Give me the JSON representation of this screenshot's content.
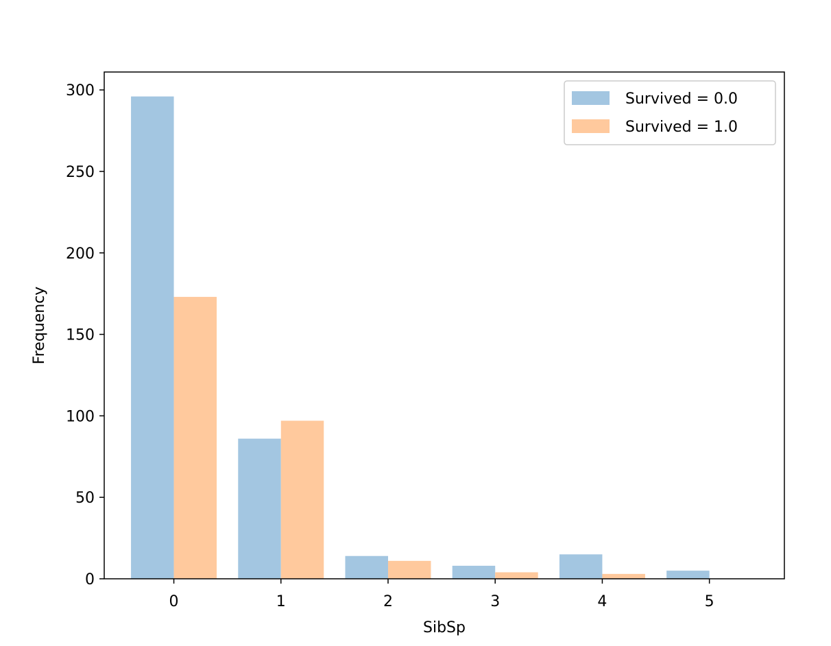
{
  "chart_data": {
    "type": "bar",
    "title": "",
    "xlabel": "SibSp",
    "ylabel": "Frequency",
    "categories": [
      "0",
      "1",
      "2",
      "3",
      "4",
      "5"
    ],
    "x": [
      0,
      1,
      2,
      3,
      4,
      5
    ],
    "series": [
      {
        "name": "Survived = 0.0",
        "values": [
          296,
          86,
          14,
          8,
          15,
          5
        ],
        "color": "#a3c6e1"
      },
      {
        "name": "Survived = 1.0",
        "values": [
          173,
          97,
          11,
          4,
          3,
          0
        ],
        "color": "#ffc99d"
      }
    ],
    "xlim": [
      -0.65,
      5.7
    ],
    "ylim": [
      0,
      311
    ],
    "yticks": [
      0,
      50,
      100,
      150,
      200,
      250,
      300
    ],
    "xticks": [
      0,
      1,
      2,
      3,
      4,
      5
    ],
    "grid": false,
    "legend_position": "top-right"
  }
}
